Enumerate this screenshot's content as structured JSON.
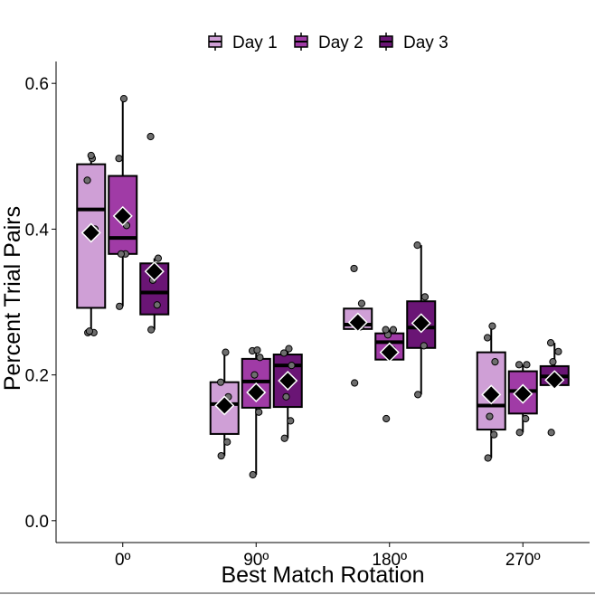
{
  "chart_data": {
    "type": "box",
    "title": "",
    "xlabel": "Best Match Rotation",
    "ylabel": "Percent Trial Pairs",
    "categories": [
      "0º",
      "90º",
      "180º",
      "270º"
    ],
    "ylim": [
      -0.03,
      0.63
    ],
    "yticks": [
      0.0,
      0.2,
      0.4,
      0.6
    ],
    "ytick_labels": [
      "0.0",
      "0.2",
      "0.4",
      "0.6"
    ],
    "grid": false,
    "legend": {
      "position": "top",
      "show": true
    },
    "series": [
      {
        "name": "Day 1",
        "color": "#cf9fd6",
        "boxes": [
          {
            "q1": 0.292,
            "median": 0.427,
            "q3": 0.489,
            "whisker_low": 0.258,
            "whisker_high": 0.501,
            "mean": 0.395,
            "points": [
              0.258,
              0.258,
              0.26,
              0.4,
              0.467,
              0.497,
              0.501
            ]
          },
          {
            "q1": 0.119,
            "median": 0.16,
            "q3": 0.19,
            "whisker_low": 0.089,
            "whisker_high": 0.231,
            "mean": 0.158,
            "points": [
              0.089,
              0.108,
              0.16,
              0.17,
              0.19,
              0.231
            ]
          },
          {
            "q1": 0.263,
            "median": 0.269,
            "q3": 0.291,
            "whisker_low": 0.263,
            "whisker_high": 0.291,
            "mean": 0.272,
            "points": [
              0.189,
              0.266,
              0.272,
              0.298,
              0.346
            ]
          },
          {
            "q1": 0.125,
            "median": 0.158,
            "q3": 0.231,
            "whisker_low": 0.086,
            "whisker_high": 0.267,
            "mean": 0.173,
            "points": [
              0.086,
              0.118,
              0.143,
              0.218,
              0.251,
              0.267
            ]
          }
        ]
      },
      {
        "name": "Day 2",
        "color": "#a03ba6",
        "boxes": [
          {
            "q1": 0.366,
            "median": 0.388,
            "q3": 0.473,
            "whisker_low": 0.294,
            "whisker_high": 0.579,
            "mean": 0.418,
            "points": [
              0.294,
              0.366,
              0.366,
              0.405,
              0.497,
              0.579
            ]
          },
          {
            "q1": 0.155,
            "median": 0.191,
            "q3": 0.222,
            "whisker_low": 0.063,
            "whisker_high": 0.233,
            "mean": 0.176,
            "points": [
              0.063,
              0.149,
              0.2,
              0.224,
              0.233,
              0.234
            ]
          },
          {
            "q1": 0.221,
            "median": 0.245,
            "q3": 0.257,
            "whisker_low": 0.221,
            "whisker_high": 0.262,
            "mean": 0.231,
            "points": [
              0.14,
              0.235,
              0.255,
              0.262,
              0.262
            ]
          },
          {
            "q1": 0.147,
            "median": 0.178,
            "q3": 0.205,
            "whisker_low": 0.121,
            "whisker_high": 0.214,
            "mean": 0.174,
            "points": [
              0.121,
              0.14,
              0.178,
              0.214,
              0.214
            ]
          }
        ]
      },
      {
        "name": "Day 3",
        "color": "#6a1575",
        "boxes": [
          {
            "q1": 0.283,
            "median": 0.313,
            "q3": 0.353,
            "whisker_low": 0.262,
            "whisker_high": 0.36,
            "mean": 0.342,
            "points": [
              0.262,
              0.296,
              0.33,
              0.36,
              0.527
            ]
          },
          {
            "q1": 0.156,
            "median": 0.213,
            "q3": 0.228,
            "whisker_low": 0.113,
            "whisker_high": 0.236,
            "mean": 0.192,
            "points": [
              0.113,
              0.137,
              0.17,
              0.213,
              0.23,
              0.236
            ]
          },
          {
            "q1": 0.237,
            "median": 0.265,
            "q3": 0.301,
            "whisker_low": 0.173,
            "whisker_high": 0.378,
            "mean": 0.271,
            "points": [
              0.173,
              0.24,
              0.27,
              0.307,
              0.378
            ]
          },
          {
            "q1": 0.186,
            "median": 0.198,
            "q3": 0.212,
            "whisker_low": 0.186,
            "whisker_high": 0.244,
            "mean": 0.193,
            "points": [
              0.121,
              0.198,
              0.218,
              0.232,
              0.244
            ]
          }
        ]
      }
    ]
  }
}
